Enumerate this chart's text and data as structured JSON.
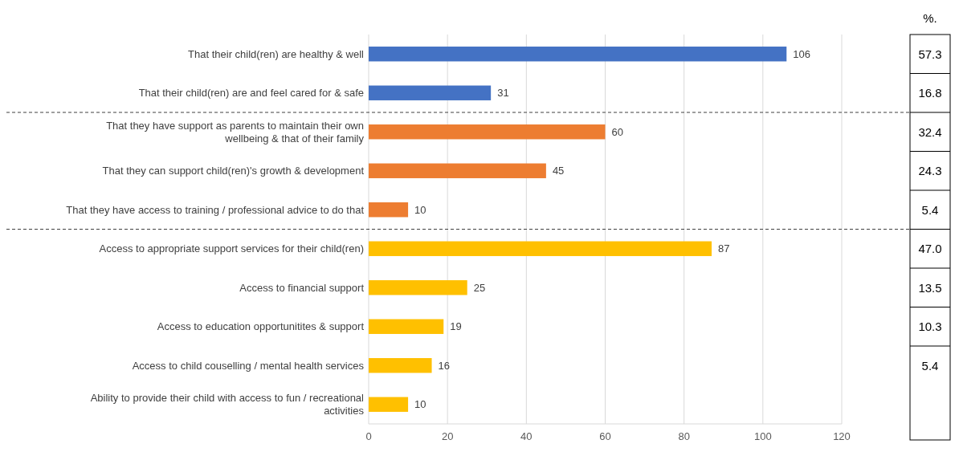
{
  "chart_data": {
    "type": "bar",
    "orientation": "horizontal",
    "categories": [
      "That their child(ren) are healthy & well",
      "That their child(ren) are and feel cared for & safe",
      "That they have support as parents to maintain their own wellbeing & that of their family",
      "That they can support child(ren)'s growth & development",
      "That they have access to training / professional advice to do that",
      "Access to appropriate support services for their child(ren)",
      "Access to financial support ",
      "Access to education opportunitites & support",
      "Access to child couselling / mental health services",
      "Ability to provide their child with access to fun / recreational activities"
    ],
    "values": [
      106,
      31,
      60,
      45,
      10,
      87,
      25,
      19,
      16,
      10
    ],
    "colors": [
      "#4472c4",
      "#4472c4",
      "#ed7d31",
      "#ed7d31",
      "#ed7d31",
      "#ffc000",
      "#ffc000",
      "#ffc000",
      "#ffc000",
      "#ffc000"
    ],
    "xlim": [
      0,
      120
    ],
    "xticks": [
      0,
      20,
      40,
      60,
      80,
      100,
      120
    ],
    "grid": "x",
    "data_labels": true,
    "annotations": [
      "%.",
      "57.3",
      "16.8",
      "32.4",
      "24.3",
      "5.4",
      "47.0",
      "13.5",
      "10.3",
      "5.4"
    ]
  }
}
